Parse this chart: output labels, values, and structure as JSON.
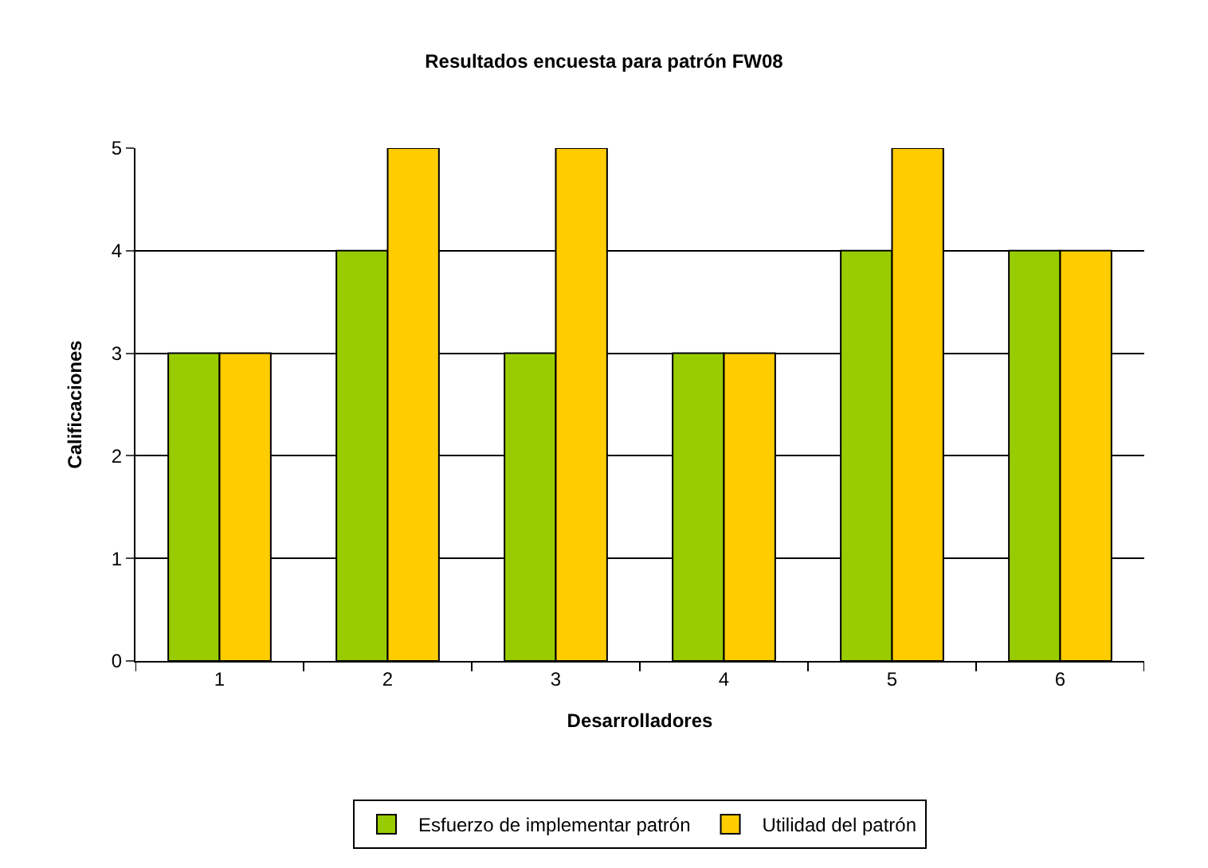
{
  "chart_data": {
    "type": "bar",
    "title": "Resultados encuesta para patrón FW08",
    "xlabel": "Desarrolladores",
    "ylabel": "Calificaciones",
    "categories": [
      "1",
      "2",
      "3",
      "4",
      "5",
      "6"
    ],
    "series": [
      {
        "name": "Esfuerzo de implementar patrón",
        "color": "#99cc00",
        "values": [
          3,
          4,
          3,
          3,
          4,
          4
        ]
      },
      {
        "name": "Utilidad del patrón",
        "color": "#ffcc00",
        "values": [
          3,
          5,
          5,
          3,
          5,
          4
        ]
      }
    ],
    "ylim": [
      0,
      5
    ],
    "yticks": [
      0,
      1,
      2,
      3,
      4,
      5
    ],
    "grid": "y",
    "legend": "bottom"
  }
}
